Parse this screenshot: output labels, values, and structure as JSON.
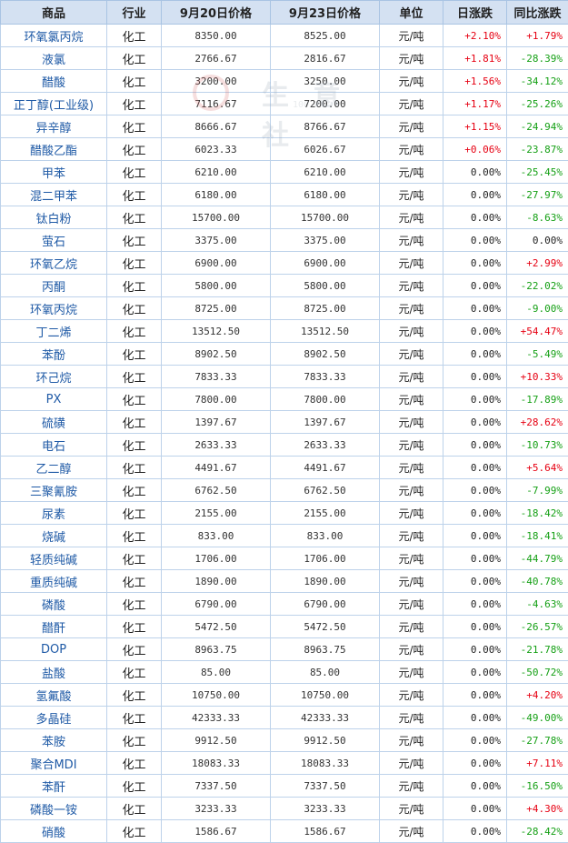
{
  "headers": [
    "商品",
    "行业",
    "9月20日价格",
    "9月23日价格",
    "单位",
    "日涨跌",
    "同比涨跌"
  ],
  "watermark": {
    "text": "生 意 社",
    "url": "100..."
  },
  "colors": {
    "up": "#e60012",
    "down": "#15a015",
    "header_bg": "#d4e1f2",
    "name_link": "#1f5aa6"
  },
  "rows": [
    {
      "name": "环氧氯丙烷",
      "industry": "化工",
      "price1": "8350.00",
      "price2": "8525.00",
      "unit": "元/吨",
      "daily": "+2.10%",
      "yoy": "+1.79%"
    },
    {
      "name": "液氯",
      "industry": "化工",
      "price1": "2766.67",
      "price2": "2816.67",
      "unit": "元/吨",
      "daily": "+1.81%",
      "yoy": "-28.39%"
    },
    {
      "name": "醋酸",
      "industry": "化工",
      "price1": "3200.00",
      "price2": "3250.00",
      "unit": "元/吨",
      "daily": "+1.56%",
      "yoy": "-34.12%"
    },
    {
      "name": "正丁醇(工业级)",
      "industry": "化工",
      "price1": "7116.67",
      "price2": "7200.00",
      "unit": "元/吨",
      "daily": "+1.17%",
      "yoy": "-25.26%"
    },
    {
      "name": "异辛醇",
      "industry": "化工",
      "price1": "8666.67",
      "price2": "8766.67",
      "unit": "元/吨",
      "daily": "+1.15%",
      "yoy": "-24.94%"
    },
    {
      "name": "醋酸乙酯",
      "industry": "化工",
      "price1": "6023.33",
      "price2": "6026.67",
      "unit": "元/吨",
      "daily": "+0.06%",
      "yoy": "-23.87%"
    },
    {
      "name": "甲苯",
      "industry": "化工",
      "price1": "6210.00",
      "price2": "6210.00",
      "unit": "元/吨",
      "daily": "0.00%",
      "yoy": "-25.45%"
    },
    {
      "name": "混二甲苯",
      "industry": "化工",
      "price1": "6180.00",
      "price2": "6180.00",
      "unit": "元/吨",
      "daily": "0.00%",
      "yoy": "-27.97%"
    },
    {
      "name": "钛白粉",
      "industry": "化工",
      "price1": "15700.00",
      "price2": "15700.00",
      "unit": "元/吨",
      "daily": "0.00%",
      "yoy": "-8.63%"
    },
    {
      "name": "萤石",
      "industry": "化工",
      "price1": "3375.00",
      "price2": "3375.00",
      "unit": "元/吨",
      "daily": "0.00%",
      "yoy": "0.00%"
    },
    {
      "name": "环氧乙烷",
      "industry": "化工",
      "price1": "6900.00",
      "price2": "6900.00",
      "unit": "元/吨",
      "daily": "0.00%",
      "yoy": "+2.99%"
    },
    {
      "name": "丙酮",
      "industry": "化工",
      "price1": "5800.00",
      "price2": "5800.00",
      "unit": "元/吨",
      "daily": "0.00%",
      "yoy": "-22.02%"
    },
    {
      "name": "环氧丙烷",
      "industry": "化工",
      "price1": "8725.00",
      "price2": "8725.00",
      "unit": "元/吨",
      "daily": "0.00%",
      "yoy": "-9.00%"
    },
    {
      "name": "丁二烯",
      "industry": "化工",
      "price1": "13512.50",
      "price2": "13512.50",
      "unit": "元/吨",
      "daily": "0.00%",
      "yoy": "+54.47%"
    },
    {
      "name": "苯酚",
      "industry": "化工",
      "price1": "8902.50",
      "price2": "8902.50",
      "unit": "元/吨",
      "daily": "0.00%",
      "yoy": "-5.49%"
    },
    {
      "name": "环己烷",
      "industry": "化工",
      "price1": "7833.33",
      "price2": "7833.33",
      "unit": "元/吨",
      "daily": "0.00%",
      "yoy": "+10.33%"
    },
    {
      "name": "PX",
      "industry": "化工",
      "price1": "7800.00",
      "price2": "7800.00",
      "unit": "元/吨",
      "daily": "0.00%",
      "yoy": "-17.89%"
    },
    {
      "name": "硫磺",
      "industry": "化工",
      "price1": "1397.67",
      "price2": "1397.67",
      "unit": "元/吨",
      "daily": "0.00%",
      "yoy": "+28.62%"
    },
    {
      "name": "电石",
      "industry": "化工",
      "price1": "2633.33",
      "price2": "2633.33",
      "unit": "元/吨",
      "daily": "0.00%",
      "yoy": "-10.73%"
    },
    {
      "name": "乙二醇",
      "industry": "化工",
      "price1": "4491.67",
      "price2": "4491.67",
      "unit": "元/吨",
      "daily": "0.00%",
      "yoy": "+5.64%"
    },
    {
      "name": "三聚氰胺",
      "industry": "化工",
      "price1": "6762.50",
      "price2": "6762.50",
      "unit": "元/吨",
      "daily": "0.00%",
      "yoy": "-7.99%"
    },
    {
      "name": "尿素",
      "industry": "化工",
      "price1": "2155.00",
      "price2": "2155.00",
      "unit": "元/吨",
      "daily": "0.00%",
      "yoy": "-18.42%"
    },
    {
      "name": "烧碱",
      "industry": "化工",
      "price1": "833.00",
      "price2": "833.00",
      "unit": "元/吨",
      "daily": "0.00%",
      "yoy": "-18.41%"
    },
    {
      "name": "轻质纯碱",
      "industry": "化工",
      "price1": "1706.00",
      "price2": "1706.00",
      "unit": "元/吨",
      "daily": "0.00%",
      "yoy": "-44.79%"
    },
    {
      "name": "重质纯碱",
      "industry": "化工",
      "price1": "1890.00",
      "price2": "1890.00",
      "unit": "元/吨",
      "daily": "0.00%",
      "yoy": "-40.78%"
    },
    {
      "name": "磷酸",
      "industry": "化工",
      "price1": "6790.00",
      "price2": "6790.00",
      "unit": "元/吨",
      "daily": "0.00%",
      "yoy": "-4.63%"
    },
    {
      "name": "醋酐",
      "industry": "化工",
      "price1": "5472.50",
      "price2": "5472.50",
      "unit": "元/吨",
      "daily": "0.00%",
      "yoy": "-26.57%"
    },
    {
      "name": "DOP",
      "industry": "化工",
      "price1": "8963.75",
      "price2": "8963.75",
      "unit": "元/吨",
      "daily": "0.00%",
      "yoy": "-21.78%"
    },
    {
      "name": "盐酸",
      "industry": "化工",
      "price1": "85.00",
      "price2": "85.00",
      "unit": "元/吨",
      "daily": "0.00%",
      "yoy": "-50.72%"
    },
    {
      "name": "氢氟酸",
      "industry": "化工",
      "price1": "10750.00",
      "price2": "10750.00",
      "unit": "元/吨",
      "daily": "0.00%",
      "yoy": "+4.20%"
    },
    {
      "name": "多晶硅",
      "industry": "化工",
      "price1": "42333.33",
      "price2": "42333.33",
      "unit": "元/吨",
      "daily": "0.00%",
      "yoy": "-49.00%"
    },
    {
      "name": "苯胺",
      "industry": "化工",
      "price1": "9912.50",
      "price2": "9912.50",
      "unit": "元/吨",
      "daily": "0.00%",
      "yoy": "-27.78%"
    },
    {
      "name": "聚合MDI",
      "industry": "化工",
      "price1": "18083.33",
      "price2": "18083.33",
      "unit": "元/吨",
      "daily": "0.00%",
      "yoy": "+7.11%"
    },
    {
      "name": "苯酐",
      "industry": "化工",
      "price1": "7337.50",
      "price2": "7337.50",
      "unit": "元/吨",
      "daily": "0.00%",
      "yoy": "-16.50%"
    },
    {
      "name": "磷酸一铵",
      "industry": "化工",
      "price1": "3233.33",
      "price2": "3233.33",
      "unit": "元/吨",
      "daily": "0.00%",
      "yoy": "+4.30%"
    },
    {
      "name": "硝酸",
      "industry": "化工",
      "price1": "1586.67",
      "price2": "1586.67",
      "unit": "元/吨",
      "daily": "0.00%",
      "yoy": "-28.42%"
    }
  ]
}
